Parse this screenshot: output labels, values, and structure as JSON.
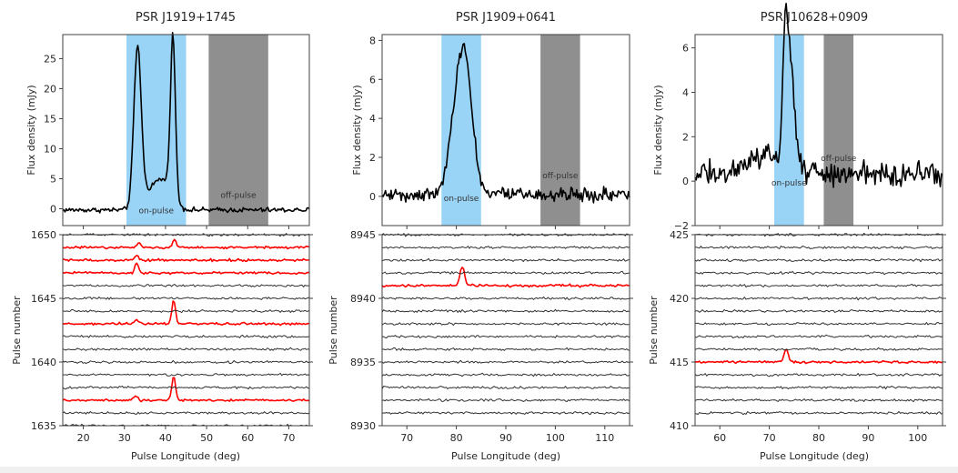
{
  "chart_data": [
    {
      "type": "line",
      "title": "PSR J1919+1745",
      "profile": {
        "xlabel": "",
        "ylabel": "Flux density (mJy)",
        "xlim": [
          15,
          75
        ],
        "ylim": [
          -2.8,
          29
        ],
        "yticks": [
          0,
          5,
          10,
          15,
          20,
          25
        ],
        "xticks": [
          20,
          30,
          40,
          50,
          60,
          70
        ],
        "on_pulse": {
          "range": [
            30.5,
            45
          ],
          "label": "on-pulse",
          "color": "#99d3f5"
        },
        "off_pulse": {
          "range": [
            50.5,
            65
          ],
          "label": "off-pulse",
          "color": "#8f8f8f"
        },
        "components": [
          {
            "center": 33.2,
            "width": 0.9,
            "amp": 26.5
          },
          {
            "center": 37.5,
            "width": 2.5,
            "amp": 4.0
          },
          {
            "center": 41.8,
            "width": 0.6,
            "amp": 26.5
          },
          {
            "center": 40.5,
            "width": 1.8,
            "amp": 2.5
          }
        ],
        "noise": 0.35,
        "baseline": -0.2
      },
      "stack": {
        "xlabel": "Pulse Longitude (deg)",
        "ylabel": "Pulse number",
        "ylim": [
          1635,
          1650
        ],
        "yticks": [
          1635,
          1640,
          1645,
          1650
        ],
        "xticks": [
          20,
          30,
          40,
          50,
          60,
          70
        ],
        "pulses": [
          1635,
          1636,
          1637,
          1638,
          1639,
          1640,
          1641,
          1642,
          1643,
          1644,
          1645,
          1646,
          1647,
          1648,
          1649,
          1650
        ],
        "highlighted": [
          1637,
          1643,
          1647,
          1648,
          1649
        ],
        "highlight_spikes": {
          "1649": [
            [
              33.5,
              0.35
            ],
            [
              42.2,
              0.6
            ]
          ],
          "1648": [
            [
              33.0,
              0.4
            ]
          ],
          "1647": [
            [
              33.0,
              0.8
            ]
          ],
          "1643": [
            [
              33.0,
              0.3
            ],
            [
              42.0,
              1.9
            ]
          ],
          "1637": [
            [
              32.8,
              0.4
            ],
            [
              42.0,
              1.9
            ]
          ]
        }
      }
    },
    {
      "type": "line",
      "title": "PSR J1909+0641",
      "profile": {
        "xlabel": "",
        "ylabel": "Flux density (mJy)",
        "xlim": [
          65,
          115
        ],
        "ylim": [
          -1.5,
          8.3
        ],
        "yticks": [
          0,
          2,
          4,
          6,
          8
        ],
        "xticks": [
          70,
          80,
          90,
          100,
          110
        ],
        "on_pulse": {
          "range": [
            77,
            85
          ],
          "label": "on-pulse",
          "color": "#99d3f5"
        },
        "off_pulse": {
          "range": [
            97,
            105
          ],
          "label": "off-pulse",
          "color": "#8f8f8f"
        },
        "components": [
          {
            "center": 81.5,
            "width": 1.6,
            "amp": 7.4
          },
          {
            "center": 79.0,
            "width": 1.2,
            "amp": 1.5
          }
        ],
        "noise": 0.3,
        "baseline": 0.1
      },
      "stack": {
        "xlabel": "Pulse Longitude (deg)",
        "ylabel": "Pulse number",
        "ylim": [
          8930,
          8945
        ],
        "yticks": [
          8930,
          8935,
          8940,
          8945
        ],
        "xticks": [
          70,
          80,
          90,
          100,
          110
        ],
        "pulses": [
          8931,
          8932,
          8933,
          8934,
          8935,
          8936,
          8937,
          8938,
          8939,
          8940,
          8941,
          8942,
          8943,
          8944,
          8945
        ],
        "highlighted": [
          8941
        ],
        "highlight_spikes": {
          "8941": [
            [
              81.2,
              1.5
            ]
          ]
        }
      }
    },
    {
      "type": "line",
      "title": "PSR J10628+0909",
      "profile": {
        "xlabel": "",
        "ylabel": "Flux density (mJy)",
        "xlim": [
          55,
          105
        ],
        "ylim": [
          -2,
          6.6
        ],
        "yticks": [
          -2,
          0,
          2,
          4,
          6
        ],
        "xticks": [
          60,
          70,
          80,
          90,
          100
        ],
        "on_pulse": {
          "range": [
            71,
            77
          ],
          "label": "on-pulse",
          "color": "#99d3f5"
        },
        "off_pulse": {
          "range": [
            81,
            87
          ],
          "label": "off-pulse",
          "color": "#8f8f8f"
        },
        "components": [
          {
            "center": 73.2,
            "width": 0.5,
            "amp": 5.2
          },
          {
            "center": 74.3,
            "width": 0.8,
            "amp": 4.3
          },
          {
            "center": 70.0,
            "width": 4.0,
            "amp": 0.8
          }
        ],
        "noise": 0.45,
        "baseline": 0.35
      },
      "stack": {
        "xlabel": "Pulse Longitude (deg)",
        "ylabel": "Pulse number",
        "ylim": [
          410,
          425
        ],
        "yticks": [
          410,
          415,
          420,
          425
        ],
        "xticks": [
          60,
          70,
          80,
          90,
          100
        ],
        "pulses": [
          411,
          412,
          413,
          414,
          415,
          416,
          417,
          418,
          419,
          420,
          421,
          422,
          423,
          424,
          425
        ],
        "highlighted": [
          415
        ],
        "highlight_spikes": {
          "415": [
            [
              73.4,
              0.9
            ]
          ]
        }
      }
    }
  ],
  "colors": {
    "profile_line": "#000000",
    "normal_pulse": "#1a1a1a",
    "highlight_pulse": "#ff0000",
    "axis": "#404040"
  }
}
